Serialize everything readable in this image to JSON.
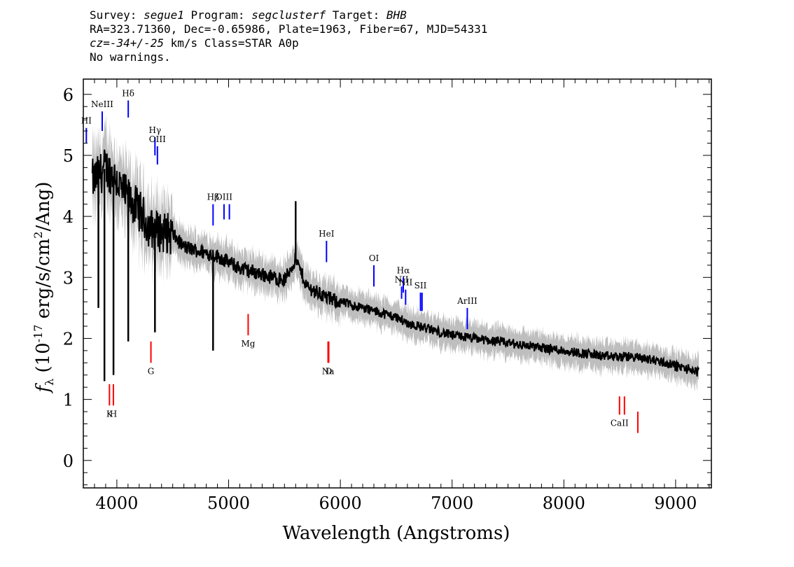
{
  "header": {
    "line1": {
      "survey_label": "Survey: ",
      "survey": "segue1",
      "program_label": " Program: ",
      "program": "segclusterf",
      "target_label": " Target: ",
      "target": "BHB"
    },
    "line2": "RA=323.71360, Dec=-0.65986, Plate=1963, Fiber=67, MJD=54331",
    "line3": {
      "cz": "cz=-34+/-25",
      "rest": " km/s Class=STAR A0p"
    },
    "line4": "No warnings."
  },
  "colors": {
    "spectrum": "#000000",
    "error_band": "#bebebe",
    "emission_lines": "#0000ff",
    "absorption_lines": "#ff0000"
  },
  "chart_data": {
    "type": "line",
    "xlabel": "Wavelength (Angstroms)",
    "ylabel": "fλ (10^-17 erg/s/cm^2/Ang)",
    "xlim": [
      3700,
      9320
    ],
    "ylim": [
      -0.45,
      6.25
    ],
    "x_ticks": [
      4000,
      5000,
      6000,
      7000,
      8000,
      9000
    ],
    "y_ticks": [
      0,
      1,
      2,
      3,
      4,
      5,
      6
    ],
    "series": [
      {
        "x": [
          3800,
          3850,
          3900,
          3950,
          4000,
          4050,
          4100,
          4150,
          4200,
          4300,
          4400,
          4500,
          4600,
          4700,
          4800,
          4900,
          5000,
          5100,
          5200,
          5300,
          5400,
          5500,
          5600,
          5700,
          5800,
          5900,
          6000,
          6100,
          6200,
          6300,
          6400,
          6500,
          6600,
          6700,
          6800,
          6900,
          7000,
          7200,
          7400,
          7600,
          7800,
          8000,
          8200,
          8400,
          8600,
          8800,
          9000,
          9100,
          9200
        ],
        "y": [
          4.6,
          4.7,
          4.8,
          4.7,
          4.6,
          4.4,
          4.3,
          4.2,
          4.1,
          3.8,
          3.75,
          3.7,
          3.5,
          3.45,
          3.4,
          3.35,
          3.25,
          3.15,
          3.1,
          3.05,
          3.0,
          2.95,
          3.3,
          2.85,
          2.75,
          2.65,
          2.6,
          2.55,
          2.5,
          2.45,
          2.4,
          2.35,
          2.25,
          2.2,
          2.15,
          2.1,
          2.05,
          2.0,
          1.95,
          1.9,
          1.85,
          1.8,
          1.75,
          1.7,
          1.7,
          1.65,
          1.55,
          1.5,
          1.45
        ]
      }
    ],
    "absorption_dips": [
      {
        "x": 3835,
        "y": 2.5
      },
      {
        "x": 3889,
        "y": 1.3
      },
      {
        "x": 3970,
        "y": 1.4
      },
      {
        "x": 4102,
        "y": 1.95
      },
      {
        "x": 4341,
        "y": 2.1
      },
      {
        "x": 4861,
        "y": 1.8
      },
      {
        "x": 5600,
        "y": 4.25
      }
    ],
    "emission_lines": [
      {
        "label": "HI",
        "x": 3727,
        "y_bottom": 5.2,
        "y_top": 5.45
      },
      {
        "label": "NeIII",
        "x": 3869,
        "y_bottom": 5.4,
        "y_top": 5.72
      },
      {
        "label": "Hδ",
        "x": 4102,
        "y_bottom": 5.62,
        "y_top": 5.9
      },
      {
        "label": "Hγ",
        "x": 4341,
        "y_bottom": 5.0,
        "y_top": 5.3
      },
      {
        "label": "OIII",
        "x": 4363,
        "y_bottom": 4.85,
        "y_top": 5.15
      },
      {
        "label": "Hβ",
        "x": 4861,
        "y_bottom": 3.85,
        "y_top": 4.2
      },
      {
        "label": "OIII",
        "x": 4959,
        "y_bottom": 3.95,
        "y_top": 4.2
      },
      {
        "label": "",
        "x": 5007,
        "y_bottom": 3.95,
        "y_top": 4.2
      },
      {
        "label": "HeI",
        "x": 5876,
        "y_bottom": 3.25,
        "y_top": 3.6
      },
      {
        "label": "OI",
        "x": 6300,
        "y_bottom": 2.85,
        "y_top": 3.2
      },
      {
        "label": "NII",
        "x": 6548,
        "y_bottom": 2.65,
        "y_top": 2.85
      },
      {
        "label": "Hα",
        "x": 6563,
        "y_bottom": 2.75,
        "y_top": 3.0
      },
      {
        "label": "NII",
        "x": 6584,
        "y_bottom": 2.55,
        "y_top": 2.8
      },
      {
        "label": "SII",
        "x": 6717,
        "y_bottom": 2.45,
        "y_top": 2.75
      },
      {
        "label": "",
        "x": 6731,
        "y_bottom": 2.45,
        "y_top": 2.75
      },
      {
        "label": "ArIII",
        "x": 7136,
        "y_bottom": 2.15,
        "y_top": 2.5
      }
    ],
    "absorption_lines": [
      {
        "label": "K",
        "x": 3934,
        "y_bottom": 0.9,
        "y_top": 1.25
      },
      {
        "label": "H",
        "x": 3969,
        "y_bottom": 0.9,
        "y_top": 1.25
      },
      {
        "label": "G",
        "x": 4305,
        "y_bottom": 1.6,
        "y_top": 1.95
      },
      {
        "label": "Mg",
        "x": 5175,
        "y_bottom": 2.05,
        "y_top": 2.4
      },
      {
        "label": "Na",
        "x": 5890,
        "y_bottom": 1.6,
        "y_top": 1.95
      },
      {
        "label": "D",
        "x": 5896,
        "y_bottom": 1.6,
        "y_top": 1.95
      },
      {
        "label": "CaII",
        "x": 8498,
        "y_bottom": 0.75,
        "y_top": 1.05
      },
      {
        "label": "",
        "x": 8542,
        "y_bottom": 0.75,
        "y_top": 1.05
      },
      {
        "label": "",
        "x": 8662,
        "y_bottom": 0.45,
        "y_top": 0.8
      }
    ]
  }
}
